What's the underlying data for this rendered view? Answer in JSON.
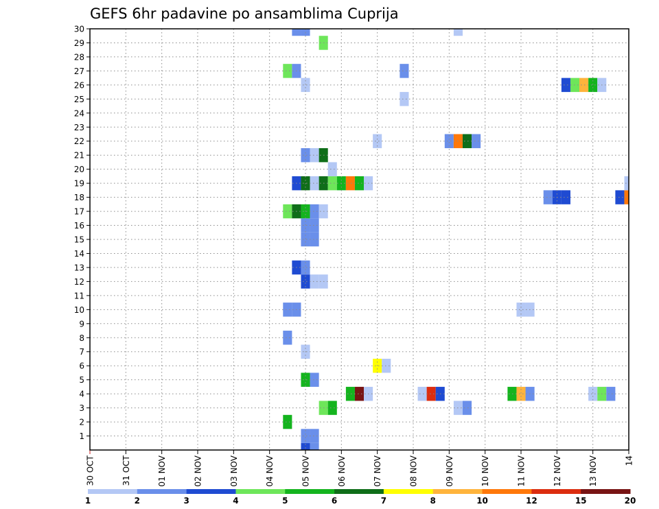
{
  "chart_data": {
    "type": "heatmap",
    "title": "GEFS 6hr padavine po ansamblima Cuprija",
    "xlabel": "",
    "ylabel": "",
    "x_tick_labels": [
      "30 OCT",
      "31 OCT",
      "01 NOV",
      "02 NOV",
      "03 NOV",
      "04 NOV",
      "05 NOV",
      "06 NOV",
      "07 NOV",
      "08 NOV",
      "09 NOV",
      "10 NOV",
      "11 NOV",
      "12 NOV",
      "13 NOV",
      "14"
    ],
    "x_tick_positions": [
      0,
      1,
      2,
      3,
      4,
      5,
      6,
      7,
      8,
      9,
      10,
      11,
      12,
      13,
      14,
      15
    ],
    "xlim": [
      0,
      15
    ],
    "y_tick_labels": [
      "1",
      "2",
      "3",
      "4",
      "5",
      "6",
      "7",
      "8",
      "9",
      "10",
      "11",
      "12",
      "13",
      "14",
      "15",
      "16",
      "17",
      "18",
      "19",
      "20",
      "21",
      "22",
      "23",
      "24",
      "25",
      "26",
      "27",
      "28",
      "29",
      "30"
    ],
    "ylim": [
      0,
      30
    ],
    "grid": true,
    "legend_position": "bottom",
    "color_scale": {
      "levels": [
        "1",
        "2",
        "3",
        "4",
        "5",
        "6",
        "7",
        "8",
        "10",
        "12",
        "15",
        "20"
      ],
      "colors": [
        "#b4c8f5",
        "#6a8fea",
        "#1f4bd2",
        "#6ee65a",
        "#14b41e",
        "#0f6e19",
        "#ffff00",
        "#ffb43c",
        "#ff780a",
        "#dc2d0f",
        "#781414"
      ]
    },
    "cells": [
      {
        "m": 0,
        "t": 6.0,
        "c": "#1f4bd2"
      },
      {
        "m": 0,
        "t": 6.25,
        "c": "#6a8fea"
      },
      {
        "m": 1,
        "t": 6.25,
        "c": "#6a8fea"
      },
      {
        "m": 1,
        "t": 6.0,
        "c": "#6a8fea"
      },
      {
        "m": 2,
        "t": 5.5,
        "c": "#14b41e"
      },
      {
        "m": 3,
        "t": 6.5,
        "c": "#6ee65a"
      },
      {
        "m": 3,
        "t": 6.75,
        "c": "#14b41e"
      },
      {
        "m": 3,
        "t": 10.25,
        "c": "#b4c8f5"
      },
      {
        "m": 3,
        "t": 10.5,
        "c": "#6a8fea"
      },
      {
        "m": 4,
        "t": 7.25,
        "c": "#14b41e"
      },
      {
        "m": 4,
        "t": 7.5,
        "c": "#781414"
      },
      {
        "m": 4,
        "t": 7.75,
        "c": "#b4c8f5"
      },
      {
        "m": 4,
        "t": 9.25,
        "c": "#b4c8f5"
      },
      {
        "m": 4,
        "t": 9.5,
        "c": "#dc2d0f"
      },
      {
        "m": 4,
        "t": 9.75,
        "c": "#1f4bd2"
      },
      {
        "m": 4,
        "t": 11.75,
        "c": "#14b41e"
      },
      {
        "m": 4,
        "t": 12.0,
        "c": "#ffb43c"
      },
      {
        "m": 4,
        "t": 12.25,
        "c": "#6a8fea"
      },
      {
        "m": 4,
        "t": 14.0,
        "c": "#b4c8f5"
      },
      {
        "m": 4,
        "t": 14.25,
        "c": "#6ee65a"
      },
      {
        "m": 4,
        "t": 14.5,
        "c": "#6a8fea"
      },
      {
        "m": 5,
        "t": 6.0,
        "c": "#14b41e"
      },
      {
        "m": 5,
        "t": 6.25,
        "c": "#6a8fea"
      },
      {
        "m": 6,
        "t": 8.0,
        "c": "#ffff00"
      },
      {
        "m": 6,
        "t": 8.25,
        "c": "#b4c8f5"
      },
      {
        "m": 7,
        "t": 6.0,
        "c": "#b4c8f5"
      },
      {
        "m": 8,
        "t": 5.5,
        "c": "#6a8fea"
      },
      {
        "m": 10,
        "t": 5.5,
        "c": "#6a8fea"
      },
      {
        "m": 10,
        "t": 5.75,
        "c": "#6a8fea"
      },
      {
        "m": 10,
        "t": 12.0,
        "c": "#b4c8f5"
      },
      {
        "m": 10,
        "t": 12.25,
        "c": "#b4c8f5"
      },
      {
        "m": 12,
        "t": 6.0,
        "c": "#1f4bd2"
      },
      {
        "m": 12,
        "t": 6.25,
        "c": "#b4c8f5"
      },
      {
        "m": 12,
        "t": 6.5,
        "c": "#b4c8f5"
      },
      {
        "m": 13,
        "t": 5.75,
        "c": "#1f4bd2"
      },
      {
        "m": 13,
        "t": 6.0,
        "c": "#6a8fea"
      },
      {
        "m": 15,
        "t": 6.0,
        "c": "#6a8fea"
      },
      {
        "m": 15,
        "t": 6.25,
        "c": "#6a8fea"
      },
      {
        "m": 16,
        "t": 6.0,
        "c": "#6a8fea"
      },
      {
        "m": 16,
        "t": 6.25,
        "c": "#6a8fea"
      },
      {
        "m": 17,
        "t": 5.5,
        "c": "#6ee65a"
      },
      {
        "m": 17,
        "t": 5.75,
        "c": "#0f6e19"
      },
      {
        "m": 17,
        "t": 6.0,
        "c": "#14b41e"
      },
      {
        "m": 17,
        "t": 6.25,
        "c": "#6a8fea"
      },
      {
        "m": 17,
        "t": 6.5,
        "c": "#b4c8f5"
      },
      {
        "m": 18,
        "t": 12.75,
        "c": "#6a8fea"
      },
      {
        "m": 18,
        "t": 13.0,
        "c": "#1f4bd2"
      },
      {
        "m": 18,
        "t": 13.25,
        "c": "#1f4bd2"
      },
      {
        "m": 18,
        "t": 14.75,
        "c": "#1f4bd2"
      },
      {
        "m": 18,
        "t": 15.0,
        "c": "#ff780a"
      },
      {
        "m": 19,
        "t": 5.75,
        "c": "#1f4bd2"
      },
      {
        "m": 19,
        "t": 6.0,
        "c": "#0f6e19"
      },
      {
        "m": 19,
        "t": 6.25,
        "c": "#b4c8f5"
      },
      {
        "m": 19,
        "t": 6.5,
        "c": "#0f6e19"
      },
      {
        "m": 19,
        "t": 6.75,
        "c": "#6ee65a"
      },
      {
        "m": 19,
        "t": 7.0,
        "c": "#14b41e"
      },
      {
        "m": 19,
        "t": 7.25,
        "c": "#ff780a"
      },
      {
        "m": 19,
        "t": 7.5,
        "c": "#14b41e"
      },
      {
        "m": 19,
        "t": 7.75,
        "c": "#b4c8f5"
      },
      {
        "m": 19,
        "t": 15.0,
        "c": "#b4c8f5"
      },
      {
        "m": 20,
        "t": 6.75,
        "c": "#b4c8f5"
      },
      {
        "m": 21,
        "t": 6.0,
        "c": "#6a8fea"
      },
      {
        "m": 21,
        "t": 6.25,
        "c": "#b4c8f5"
      },
      {
        "m": 21,
        "t": 6.5,
        "c": "#0f6e19"
      },
      {
        "m": 22,
        "t": 8.0,
        "c": "#b4c8f5"
      },
      {
        "m": 22,
        "t": 10.0,
        "c": "#6a8fea"
      },
      {
        "m": 22,
        "t": 10.25,
        "c": "#ff780a"
      },
      {
        "m": 22,
        "t": 10.5,
        "c": "#0f6e19"
      },
      {
        "m": 22,
        "t": 10.75,
        "c": "#6a8fea"
      },
      {
        "m": 25,
        "t": 8.75,
        "c": "#b4c8f5"
      },
      {
        "m": 26,
        "t": 6.0,
        "c": "#b4c8f5"
      },
      {
        "m": 26,
        "t": 13.25,
        "c": "#1f4bd2"
      },
      {
        "m": 26,
        "t": 13.5,
        "c": "#6ee65a"
      },
      {
        "m": 26,
        "t": 13.75,
        "c": "#ffb43c"
      },
      {
        "m": 26,
        "t": 14.0,
        "c": "#14b41e"
      },
      {
        "m": 26,
        "t": 14.25,
        "c": "#b4c8f5"
      },
      {
        "m": 27,
        "t": 5.5,
        "c": "#6ee65a"
      },
      {
        "m": 27,
        "t": 5.75,
        "c": "#6a8fea"
      },
      {
        "m": 27,
        "t": 8.75,
        "c": "#6a8fea"
      },
      {
        "m": 29,
        "t": 6.5,
        "c": "#6ee65a"
      },
      {
        "m": 30,
        "t": 5.75,
        "c": "#6a8fea"
      },
      {
        "m": 30,
        "t": 6.0,
        "c": "#6a8fea"
      },
      {
        "m": 30,
        "t": 10.25,
        "c": "#b4c8f5"
      }
    ]
  }
}
